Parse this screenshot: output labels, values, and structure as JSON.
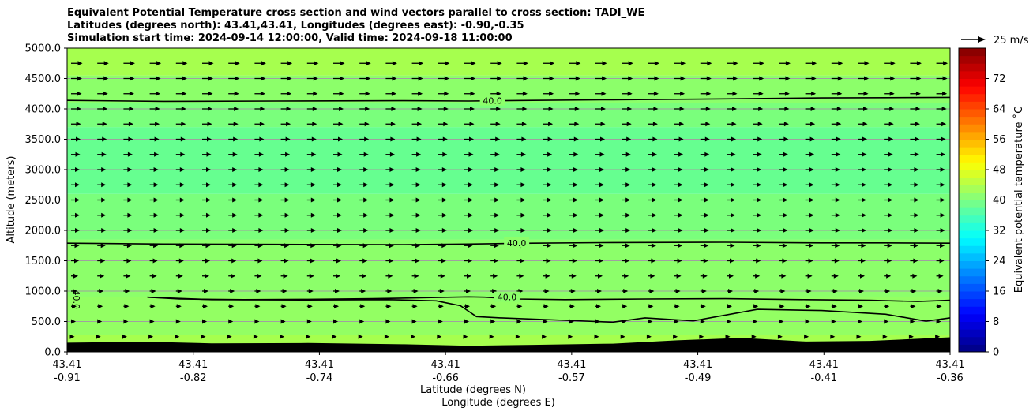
{
  "chart_data": {
    "type": "heatmap",
    "title": [
      "Equivalent Potential Temperature cross section and wind vectors parallel to cross section: TADI_WE",
      "Latitudes (degrees north): 43.41,43.41, Longitudes (degrees east): -0.90,-0.35",
      "Simulation start time: 2024-09-14 12:00:00, Valid time: 2024-09-18 11:00:00"
    ],
    "ylabel": "Altitude (meters)",
    "xlabel_lat": "Latitude (degrees N)",
    "xlabel_lon": "Longitude (degrees E)",
    "ylim": [
      0,
      5000
    ],
    "yticks": [
      "0.0",
      "500.0",
      "1000.0",
      "1500.0",
      "2000.0",
      "2500.0",
      "3000.0",
      "3500.0",
      "4000.0",
      "4500.0",
      "5000.0"
    ],
    "xticks_lat": [
      "43.41",
      "43.41",
      "43.41",
      "43.41",
      "43.41",
      "43.41",
      "43.41",
      "43.41"
    ],
    "xticks_lon": [
      "-0.91",
      "-0.82",
      "-0.74",
      "-0.66",
      "-0.57",
      "-0.49",
      "-0.41",
      "-0.36"
    ],
    "xlim": [
      -0.91,
      -0.36
    ],
    "grid": true,
    "colorbar": {
      "label": "Equivalent potential temperature ˚C",
      "ticks": [
        "0",
        "8",
        "16",
        "24",
        "32",
        "40",
        "48",
        "56",
        "64",
        "72"
      ],
      "range": [
        0,
        80
      ],
      "colormap": "jet"
    },
    "quiver_key": {
      "label": "25 m/s"
    },
    "contour_levels": [
      40.0
    ],
    "contour_labels": [
      "40.0",
      "40.0",
      "40.0",
      "40.0"
    ],
    "temperature_layers": [
      {
        "alt_from": 0,
        "alt_to": 280,
        "theta_e": 45,
        "color": "#a6ff4e"
      },
      {
        "alt_from": 280,
        "alt_to": 900,
        "theta_e": 42,
        "color": "#93ff63"
      },
      {
        "alt_from": 900,
        "alt_to": 1850,
        "theta_e": 41,
        "color": "#8cff6a"
      },
      {
        "alt_from": 1850,
        "alt_to": 2600,
        "theta_e": 39,
        "color": "#7aff7c"
      },
      {
        "alt_from": 2600,
        "alt_to": 3700,
        "theta_e": 37,
        "color": "#66ff90"
      },
      {
        "alt_from": 3700,
        "alt_to": 4100,
        "theta_e": 39,
        "color": "#7aff7c"
      },
      {
        "alt_from": 4100,
        "alt_to": 4550,
        "theta_e": 41,
        "color": "#8cff6a"
      },
      {
        "alt_from": 4550,
        "alt_to": 5000,
        "theta_e": 45,
        "color": "#a6ff4e"
      }
    ],
    "terrain": {
      "lon": [
        -0.91,
        -0.86,
        -0.82,
        -0.76,
        -0.7,
        -0.66,
        -0.62,
        -0.57,
        -0.53,
        -0.49,
        -0.45,
        -0.41,
        -0.38,
        -0.36
      ],
      "height": [
        150,
        165,
        140,
        145,
        125,
        100,
        115,
        135,
        190,
        230,
        170,
        180,
        215,
        240
      ]
    },
    "contour_40": [
      {
        "name": "upper",
        "lon": [
          -0.91,
          -0.85,
          -0.78,
          -0.7,
          -0.66,
          -0.62,
          -0.57,
          -0.5,
          -0.44,
          -0.4,
          -0.36
        ],
        "alt": [
          4140,
          4125,
          4130,
          4135,
          4130,
          4140,
          4150,
          4165,
          4180,
          4185,
          4190
        ]
      },
      {
        "name": "middle",
        "lon": [
          -0.91,
          -0.85,
          -0.78,
          -0.7,
          -0.66,
          -0.62,
          -0.57,
          -0.5,
          -0.44,
          -0.4,
          -0.36
        ],
        "alt": [
          1790,
          1775,
          1770,
          1765,
          1775,
          1790,
          1800,
          1805,
          1795,
          1795,
          1790
        ]
      },
      {
        "name": "lower-top",
        "lon": [
          -0.86,
          -0.84,
          -0.8,
          -0.76,
          -0.72,
          -0.68,
          -0.66,
          -0.65,
          -0.63,
          -0.6,
          -0.55,
          -0.5,
          -0.45,
          -0.41,
          -0.38,
          -0.36
        ],
        "alt": [
          900,
          870,
          860,
          865,
          875,
          895,
          905,
          900,
          870,
          860,
          870,
          875,
          860,
          850,
          830,
          850
        ]
      },
      {
        "name": "lower-bottom",
        "lon": [
          -0.86,
          -0.82,
          -0.76,
          -0.71,
          -0.68,
          -0.665,
          -0.655,
          -0.64,
          -0.6,
          -0.57,
          -0.55,
          -0.52,
          -0.48,
          -0.44,
          -0.4,
          -0.375,
          -0.36
        ],
        "alt": [
          900,
          860,
          855,
          860,
          840,
          760,
          580,
          560,
          520,
          490,
          560,
          510,
          700,
          680,
          620,
          505,
          560
        ]
      }
    ],
    "wind_u_profile": {
      "alt": [
        0,
        500,
        1000,
        1500,
        2000,
        2500,
        3000,
        3500,
        4000,
        4500,
        5000
      ],
      "speed_ms": [
        3,
        6,
        8,
        10,
        11,
        11,
        11,
        12,
        13,
        14,
        15
      ]
    }
  }
}
